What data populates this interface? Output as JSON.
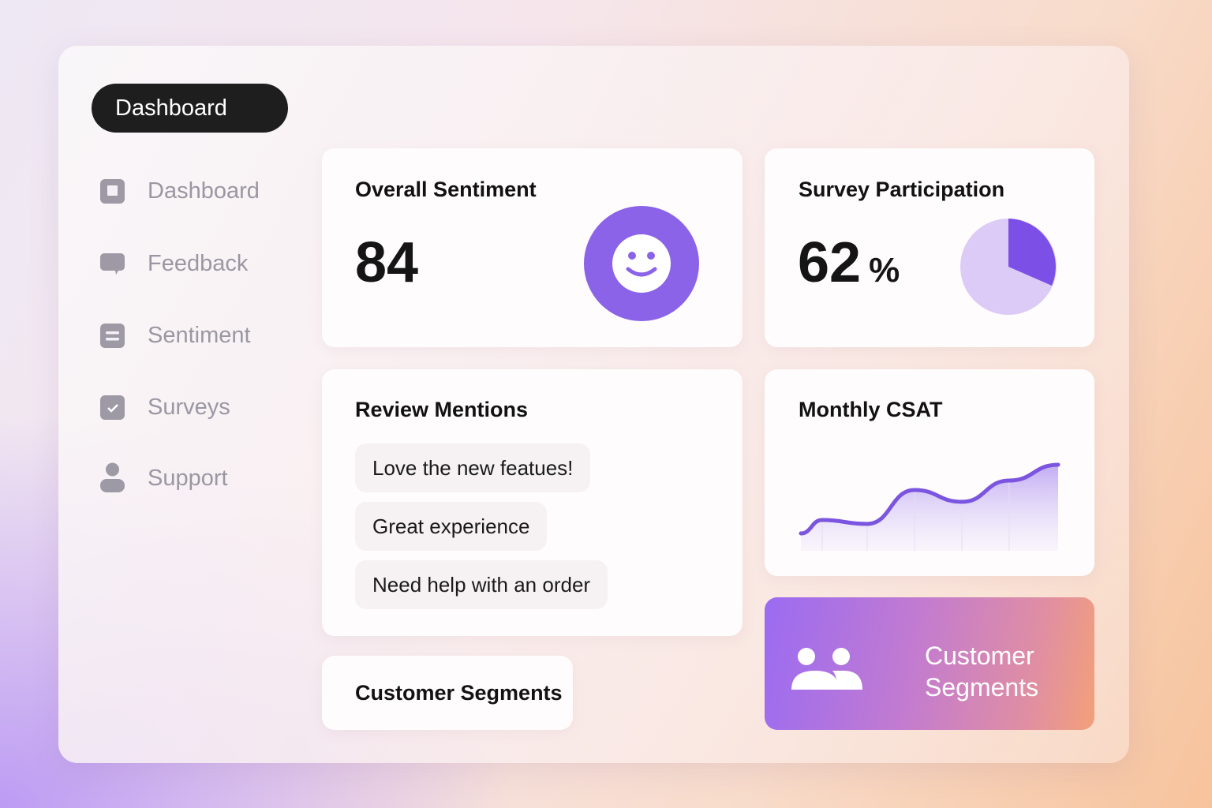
{
  "header": {
    "title": "Dashboard"
  },
  "sidebar": {
    "items": [
      {
        "label": "Dashboard",
        "icon": "square-icon"
      },
      {
        "label": "Feedback",
        "icon": "chat-bubble-icon"
      },
      {
        "label": "Sentiment",
        "icon": "list-icon"
      },
      {
        "label": "Surveys",
        "icon": "checkbox-icon"
      },
      {
        "label": "Support",
        "icon": "user-icon"
      }
    ]
  },
  "sentiment": {
    "title": "Overall Sentiment",
    "value": "84",
    "icon": "smiley-icon",
    "color": "#8a63e8"
  },
  "participation": {
    "title": "Survey Participation",
    "value": "62",
    "unit": "%",
    "colors": {
      "filled": "#7c4fe6",
      "rest": "#dccbf7"
    }
  },
  "mentions": {
    "title": "Review Mentions",
    "items": [
      "Love the new featues!",
      "Great experience",
      "Need help with an order"
    ]
  },
  "csat": {
    "title": "Monthly CSAT",
    "chart_data": {
      "type": "area",
      "values": [
        30,
        47,
        42,
        85,
        70,
        97,
        117
      ],
      "color": "#7b55e0"
    }
  },
  "segments_button": {
    "label": "Customer Segments"
  },
  "segments_card": {
    "line1": "Customer",
    "line2": "Segments",
    "icon": "users-icon"
  }
}
